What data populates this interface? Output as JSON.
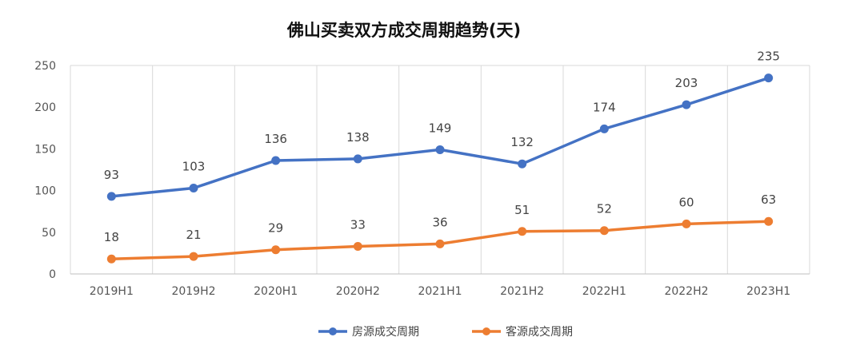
{
  "chart_data": {
    "type": "line",
    "title": "佛山买卖双方成交周期趋势(天)",
    "xlabel": "",
    "ylabel": "",
    "categories": [
      "2019H1",
      "2019H2",
      "2020H1",
      "2020H2",
      "2021H1",
      "2021H2",
      "2022H1",
      "2022H2",
      "2023H1"
    ],
    "ylim": [
      0,
      250
    ],
    "yticks": [
      0,
      50,
      100,
      150,
      200,
      250
    ],
    "grid": "vertical",
    "legend": "bottom-center",
    "series": [
      {
        "name": "房源成交周期",
        "color": "#4472C4",
        "values": [
          93,
          103,
          136,
          138,
          149,
          132,
          174,
          203,
          235
        ]
      },
      {
        "name": "客源成交周期",
        "color": "#ED7D31",
        "values": [
          18,
          21,
          29,
          33,
          36,
          51,
          52,
          60,
          63
        ]
      }
    ]
  }
}
